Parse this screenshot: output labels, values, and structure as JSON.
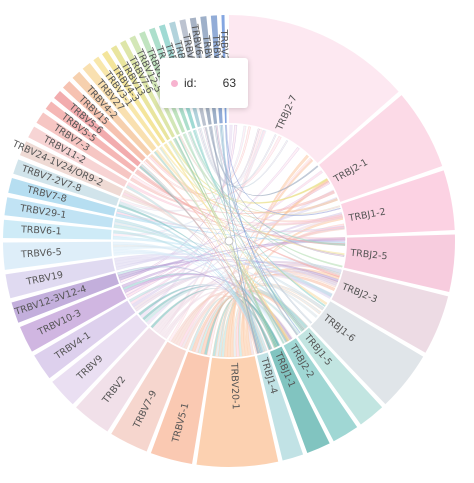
{
  "chart_data": {
    "type": "chord",
    "title": "",
    "segments": [
      {
        "label": "TRBJ2-7",
        "value": 63,
        "color": "#fde4ee"
      },
      {
        "label": "TRBJ2-1",
        "value": 27,
        "color": "#fcd3e3"
      },
      {
        "label": "TRBJ1-2",
        "value": 20,
        "color": "#fbcade"
      },
      {
        "label": "TRBJ2-5",
        "value": 19,
        "color": "#f6c3d8"
      },
      {
        "label": "TRBJ2-3",
        "value": 20,
        "color": "#ead5df"
      },
      {
        "label": "TRBJ1-6",
        "value": 20,
        "color": "#dbe1e5"
      },
      {
        "label": "TRBJ1-5",
        "value": 9,
        "color": "#b7e0dc"
      },
      {
        "label": "TRBJ2-2",
        "value": 9,
        "color": "#8fd0cc"
      },
      {
        "label": "TRBJ1-1",
        "value": 8,
        "color": "#6bbab5"
      },
      {
        "label": "TRBJ1-4",
        "value": 7,
        "color": "#b6dde0"
      },
      {
        "label": "TRBV20-1",
        "value": 27,
        "color": "#fcc9a3"
      },
      {
        "label": "TRBV5-1",
        "value": 14,
        "color": "#f9c0a5"
      },
      {
        "label": "TRBV7-9",
        "value": 13,
        "color": "#f4cfc6"
      },
      {
        "label": "TRBV2",
        "value": 13,
        "color": "#efdbe5"
      },
      {
        "label": "TRBV9",
        "value": 10,
        "color": "#e6d9f0"
      },
      {
        "label": "TRBV4-1",
        "value": 9,
        "color": "#d7c8ea"
      },
      {
        "label": "TRBV10-3",
        "value": 9,
        "color": "#c8a9dc"
      },
      {
        "label": "TRBV12-3V12-4",
        "value": 7,
        "color": "#b8a1d6"
      },
      {
        "label": "TRBV19",
        "value": 8,
        "color": "#dad4ef"
      },
      {
        "label": "TRBV6-5",
        "value": 9,
        "color": "#d8ebf8"
      },
      {
        "label": "TRBV6-1",
        "value": 6,
        "color": "#c6e7f6"
      },
      {
        "label": "TRBV29-1",
        "value": 6,
        "color": "#b6def2"
      },
      {
        "label": "TRBV7-8",
        "value": 5,
        "color": "#a9d8ee"
      },
      {
        "label": "TRBV7-2V7-8",
        "value": 5,
        "color": "#c9dfe8"
      },
      {
        "label": "TRBV24-1V24/OR9-2",
        "value": 5,
        "color": "#ecd3cc"
      },
      {
        "label": "TRBV11-2",
        "value": 4,
        "color": "#f6cccc"
      },
      {
        "label": "TRBV7-3",
        "value": 4,
        "color": "#f5bcb8"
      },
      {
        "label": "TRBV5-5",
        "value": 3,
        "color": "#f3aaa8"
      },
      {
        "label": "TRBV5-6",
        "value": 3,
        "color": "#f09ea0"
      },
      {
        "label": "TRBV15",
        "value": 3,
        "color": "#f4b7a3"
      },
      {
        "label": "TRBV4-2",
        "value": 3,
        "color": "#f5c8a0"
      },
      {
        "label": "TRBV27",
        "value": 3,
        "color": "#f8daa2"
      },
      {
        "label": "TRBV3-1",
        "value": 2,
        "color": "#f7e39c"
      },
      {
        "label": "TRBV4-3",
        "value": 2,
        "color": "#f2e08a"
      },
      {
        "label": "TRBV13",
        "value": 2,
        "color": "#e5e18d"
      },
      {
        "label": "TRBV7-6",
        "value": 2,
        "color": "#d8e29a"
      },
      {
        "label": "TRBV12-5",
        "value": 2,
        "color": "#cbe3aa"
      },
      {
        "label": "TRBV6-6",
        "value": 2,
        "color": "#b6dfb5"
      },
      {
        "label": "TRBV18",
        "value": 2,
        "color": "#9fd9c3"
      },
      {
        "label": "TRBV14",
        "value": 2,
        "color": "#8fd3cc"
      },
      {
        "label": "TRBV16",
        "value": 2,
        "color": "#a5cbd6"
      },
      {
        "label": "TRBV10-2",
        "value": 2,
        "color": "#b0b8c8"
      },
      {
        "label": "TRBV6-2V6-3",
        "value": 2,
        "color": "#98a6bb"
      },
      {
        "label": "TRBV28",
        "value": 2,
        "color": "#8da2c0"
      },
      {
        "label": "TRBV30",
        "value": 2,
        "color": "#7f9ed0"
      },
      {
        "label": "TRBV21-1",
        "value": 1,
        "color": "#6f96dc"
      }
    ]
  },
  "tooltip": {
    "key": "id:",
    "value": "63"
  }
}
